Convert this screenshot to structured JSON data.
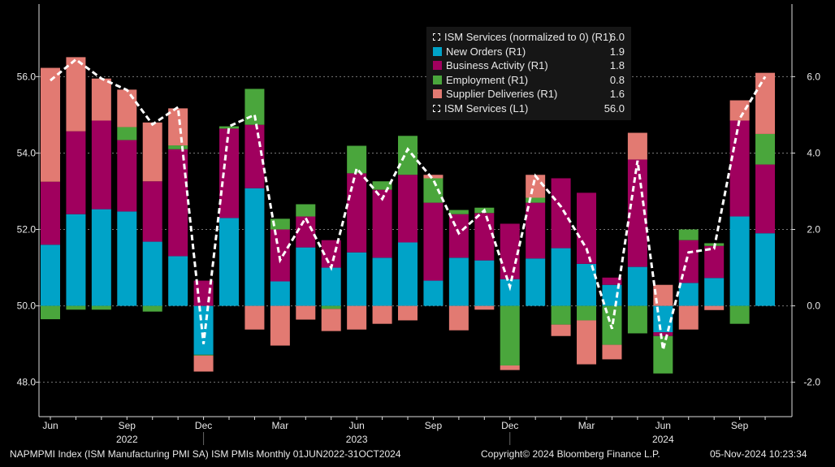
{
  "chart_data": {
    "type": "bar",
    "subtype": "stacked bar with line overlay, dual axis",
    "categories": [
      "Jun 2022",
      "Jul 2022",
      "Aug 2022",
      "Sep 2022",
      "Oct 2022",
      "Nov 2022",
      "Dec 2022",
      "Jan 2023",
      "Feb 2023",
      "Mar 2023",
      "Apr 2023",
      "May 2023",
      "Jun 2023",
      "Jul 2023",
      "Aug 2023",
      "Sep 2023",
      "Oct 2023",
      "Nov 2023",
      "Dec 2023",
      "Jan 2024",
      "Feb 2024",
      "Mar 2024",
      "Apr 2024",
      "May 2024",
      "Jun 2024",
      "Jul 2024",
      "Aug 2024",
      "Sep 2024",
      "Oct 2024"
    ],
    "series": [
      {
        "name": "New Orders (R1)",
        "color": "#00a3c8",
        "values": [
          1.6,
          2.4,
          2.53,
          2.47,
          1.68,
          1.3,
          -1.28,
          2.3,
          3.08,
          0.64,
          1.53,
          1.0,
          1.4,
          1.26,
          1.66,
          0.66,
          1.26,
          1.19,
          0.7,
          1.24,
          1.51,
          1.1,
          0.55,
          1.02,
          -0.69,
          0.6,
          0.73,
          2.34,
          1.9
        ]
      },
      {
        "name": "Business Activity (R1)",
        "color": "#a0005e",
        "values": [
          1.65,
          2.17,
          2.32,
          1.87,
          1.58,
          2.8,
          0.66,
          2.34,
          1.66,
          1.36,
          0.81,
          0.72,
          2.07,
          1.78,
          1.77,
          2.04,
          1.14,
          1.24,
          1.45,
          1.46,
          1.83,
          1.86,
          0.19,
          2.81,
          -0.1,
          1.12,
          0.84,
          2.51,
          1.8
        ]
      },
      {
        "name": "Employment (R1)",
        "color": "#4aa63c",
        "values": [
          -0.35,
          -0.1,
          -0.1,
          0.34,
          -0.15,
          0.1,
          -0.02,
          0.06,
          0.94,
          0.28,
          0.32,
          -0.08,
          0.72,
          0.22,
          1.02,
          0.64,
          0.11,
          0.14,
          -1.56,
          0.13,
          -0.49,
          -0.38,
          -1.02,
          -0.72,
          -0.98,
          0.28,
          0.07,
          -0.47,
          0.8
        ]
      },
      {
        "name": "Supplier Deliveries (R1)",
        "color": "#e27a72",
        "values": [
          2.98,
          1.94,
          1.1,
          0.98,
          1.54,
          0.97,
          -0.42,
          0.0,
          -0.62,
          -1.04,
          -0.36,
          -0.58,
          -0.62,
          -0.47,
          -0.38,
          0.09,
          -0.64,
          -0.1,
          -0.12,
          0.6,
          -0.3,
          -1.15,
          -0.38,
          0.7,
          0.55,
          -0.62,
          -0.11,
          0.53,
          1.6
        ]
      }
    ],
    "line": {
      "name": "ISM Services (normalized to 0) (R1)",
      "color": "#ffffff",
      "values": [
        5.9,
        6.45,
        5.95,
        5.65,
        4.75,
        5.2,
        -1.0,
        4.7,
        5.0,
        1.2,
        2.3,
        1.0,
        3.6,
        2.8,
        4.1,
        3.3,
        1.9,
        2.5,
        0.5,
        3.4,
        2.6,
        1.5,
        -0.6,
        3.8,
        -1.15,
        1.4,
        1.5,
        4.9,
        6.0
      ]
    },
    "right_axis": {
      "ylim": [
        -2.9,
        7.9
      ],
      "ticks": [
        "6.0",
        "4.0",
        "2.0",
        "0.0",
        "-2.0"
      ],
      "tick_values": [
        6,
        4,
        2,
        0,
        -2
      ]
    },
    "left_axis": {
      "ylim": [
        47.1,
        57.9
      ],
      "ticks": [
        "56.0",
        "54.0",
        "52.0",
        "50.0",
        "48.0"
      ],
      "tick_values": [
        56,
        54,
        52,
        50,
        48
      ]
    },
    "x_ticks": [
      {
        "index": 0,
        "label": "Jun"
      },
      {
        "index": 3,
        "label": "Sep"
      },
      {
        "index": 6,
        "label": "Dec"
      },
      {
        "index": 9,
        "label": "Mar"
      },
      {
        "index": 12,
        "label": "Jun"
      },
      {
        "index": 15,
        "label": "Sep"
      },
      {
        "index": 18,
        "label": "Dec"
      },
      {
        "index": 21,
        "label": "Mar"
      },
      {
        "index": 24,
        "label": "Jun"
      },
      {
        "index": 27,
        "label": "Sep"
      }
    ],
    "year_labels": [
      {
        "index": 3,
        "label": "2022"
      },
      {
        "index": 12,
        "label": "2023"
      },
      {
        "index": 24,
        "label": "2024"
      }
    ],
    "grid": true,
    "legend_position": "top-right"
  },
  "legend": [
    {
      "label": "ISM Services (normalized to 0) (R1)",
      "value": "6.0",
      "icon": "dashed-line",
      "color": "#ffffff"
    },
    {
      "label": "New Orders (R1)",
      "value": "1.9",
      "icon": "swatch",
      "color": "#00a3c8"
    },
    {
      "label": "Business Activity (R1)",
      "value": "1.8",
      "icon": "swatch",
      "color": "#a0005e"
    },
    {
      "label": "Employment (R1)",
      "value": "0.8",
      "icon": "swatch",
      "color": "#4aa63c"
    },
    {
      "label": "Supplier Deliveries (R1)",
      "value": "1.6",
      "icon": "swatch",
      "color": "#e27a72"
    },
    {
      "label": "ISM Services (L1)",
      "value": "56.0",
      "icon": "dashed-line",
      "color": "#ffffff"
    }
  ],
  "footer": {
    "source": "NAPMPMI Index (ISM Manufacturing PMI SA) ISM PMIs  Monthly 01JUN2022-31OCT2024",
    "copyright": "Copyright© 2024 Bloomberg Finance L.P.",
    "timestamp": "05-Nov-2024 10:23:34"
  }
}
